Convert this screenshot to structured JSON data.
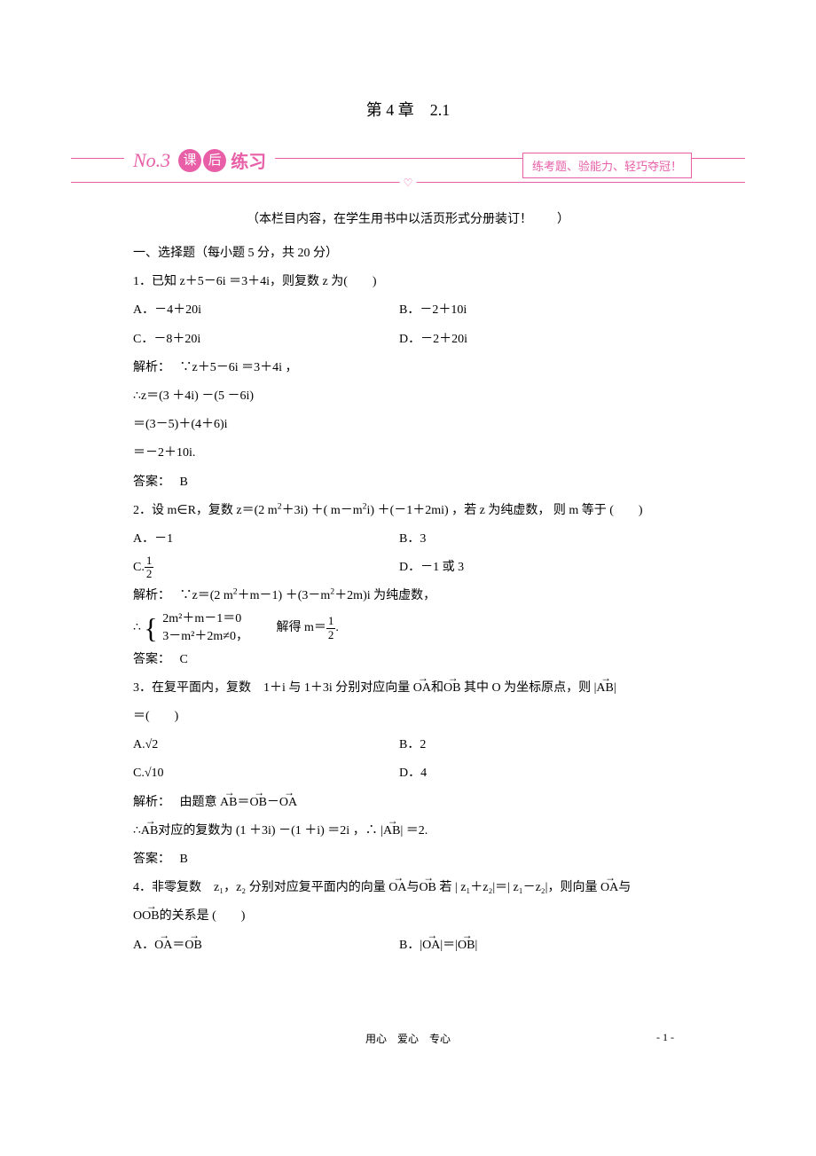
{
  "chapter": "第 4 章　2.1",
  "banner": {
    "script": "No.3",
    "circle1": "课",
    "circle2": "后",
    "rest": "练习",
    "box": "练考题、验能力、轻巧夺冠！",
    "heart": "♡"
  },
  "note": "（本栏目内容，在学生用书中以活页形式分册装订！　　）",
  "section1": "一、选择题（每小题 5 分，共 20 分）",
  "q1": {
    "stem": "1．已知 z＋5－6i ＝3＋4i，则复数 z 为(　　)",
    "A": "A．－4＋20i",
    "B": "B．－2＋10i",
    "C": "C．－8＋20i",
    "D": "D．－2＋20i",
    "sol_label": "解析：",
    "s1": "∵z＋5－6i ＝3＋4i ，",
    "s2": "∴z＝(3 ＋4i) －(5 －6i)",
    "s3": "＝(3－5)＋(4＋6)i",
    "s4": "＝－2＋10i.",
    "ans_label": "答案：",
    "ans": "B"
  },
  "q2": {
    "stem_a": "2．设 m∈R，复数 z＝(2 m",
    "stem_b": "＋3i) ＋( m－m",
    "stem_c": "i) ＋(－1＋2mi) ，若 z 为纯虚数， 则 m 等于 (　　)",
    "A": "A．－1",
    "B": "B．3",
    "C_pre": "C.",
    "C_num": "1",
    "C_den": "2",
    "D": "D．－1 或 3",
    "sol_label": "解析：",
    "s1a": "∵z＝(2 m",
    "s1b": "＋m－1) ＋(3－m",
    "s1c": "＋2m)i 为纯虚数，",
    "sys_pre": "∴",
    "sys1": "2m²＋m－1＝0",
    "sys2": "3－m²＋2m≠0，",
    "sys_post": "解得 m＝",
    "sys_num": "1",
    "sys_den": "2",
    "sys_end": ".",
    "ans_label": "答案：",
    "ans": "C"
  },
  "q3": {
    "stem_a": "3．在复平面内，复数　1＋i 与 1＋3i 分别对应向量 ",
    "stem_oa": "OA",
    "stem_mid": "和",
    "stem_ob": "OB",
    "stem_b": " 其中 O 为坐标原点，则 |",
    "stem_ab": "AB",
    "stem_c": "|",
    "stem_line2": "＝(　　)",
    "A": "A.√2",
    "B": "B．2",
    "C": "C.√10",
    "D": "D．4",
    "sol_label": "解析：",
    "s1_a": "由题意 ",
    "s1_ab": "AB",
    "s1_eq": "＝",
    "s1_ob": "OB",
    "s1_minus": "－",
    "s1_oa": "OA",
    "s2_a": "∴",
    "s2_ab": "AB",
    "s2_b": "对应的复数为 (1 ＋3i) －(1 ＋i) ＝2i ，∴ |",
    "s2_ab2": "AB",
    "s2_c": "| ＝2.",
    "ans_label": "答案：",
    "ans": "B"
  },
  "q4": {
    "stem_a": "4．非零复数　z₁，z₂ 分别对应复平面内的向量 ",
    "stem_oa": "OA",
    "stem_mid": "与",
    "stem_ob": "OB",
    "stem_b": " 若 | z₁＋z₂|＝| z₁－z₂|，则向量 ",
    "stem_oa2": "OA",
    "stem_c": "与",
    "line2_pre": "O",
    "line2_ob": "OB",
    "line2_rest": "的关系是 (　　)",
    "A_pre": "A．",
    "A_oa": "OA",
    "A_eq": "＝",
    "A_ob": "OB",
    "B_pre": "B．|",
    "B_oa": "OA",
    "B_mid": "|＝|",
    "B_ob": "OB",
    "B_end": "|"
  },
  "footer": "用心　爱心　专心",
  "pagenum": "- 1 -"
}
